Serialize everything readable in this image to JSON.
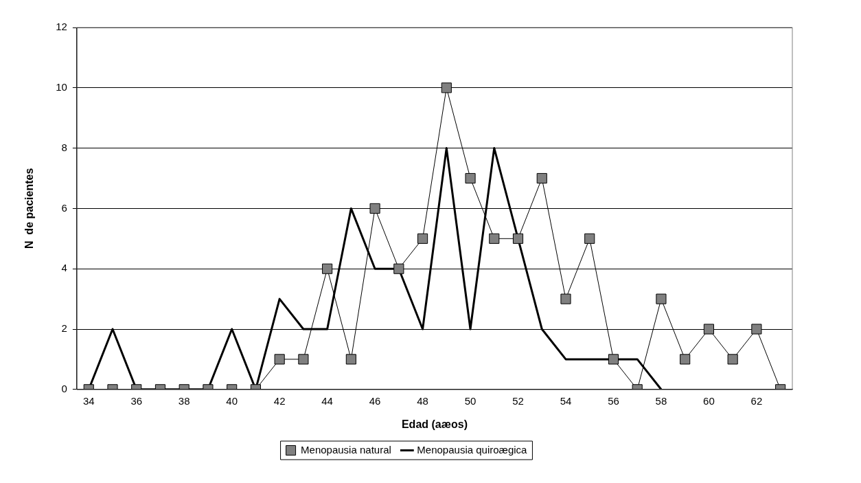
{
  "chart_data": {
    "type": "line",
    "xlabel": "Edad (aæos)",
    "ylabel": "N  de pacientes",
    "categories": [
      "34",
      null,
      "36",
      null,
      "38",
      null,
      "40",
      null,
      "42",
      null,
      "44",
      null,
      "46",
      null,
      "48",
      null,
      "50",
      null,
      "52",
      null,
      "54",
      null,
      "56",
      null,
      "58",
      null,
      "60",
      null,
      "62",
      null
    ],
    "ylim": [
      0,
      12
    ],
    "yticks": [
      0,
      2,
      4,
      6,
      8,
      10,
      12
    ],
    "grid": "y",
    "legend": "bottom",
    "series": [
      {
        "name": "Menopausia natural",
        "color": "#808080",
        "marker": "square",
        "values": [
          0,
          0,
          0,
          0,
          0,
          0,
          0,
          0,
          1,
          1,
          4,
          1,
          6,
          4,
          5,
          10,
          7,
          5,
          5,
          7,
          3,
          5,
          1,
          0,
          3,
          1,
          2,
          1,
          2,
          0
        ]
      },
      {
        "name": "Menopausia quiroægica",
        "color": "#000000",
        "marker": "none",
        "values": [
          0,
          2,
          0,
          0,
          0,
          0,
          2,
          0,
          3,
          2,
          2,
          6,
          4,
          4,
          2,
          8,
          2,
          8,
          5,
          2,
          1,
          1,
          1,
          1,
          0,
          null,
          null,
          null,
          null,
          null
        ]
      }
    ]
  }
}
